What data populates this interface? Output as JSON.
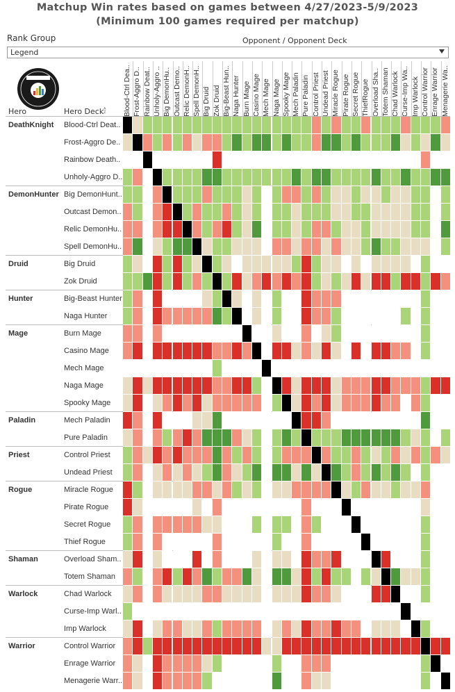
{
  "title_line1": "Matchup Win rates based on games between 4/27/2023-5/9/2023",
  "title_line2": "(Minimum 100 games required per matchup)",
  "rank_group_label": "Rank Group",
  "rank_group_value": "Legend",
  "opponent_header": "Opponent / Opponent Deck",
  "hero_header": "Hero",
  "deck_header": "Hero Deck",
  "colors": {
    "G": "#4f9a3d",
    "g": "#a9d477",
    "B": "#e8dcc2",
    "r": "#f4917e",
    "R": "#d9302a",
    "X": "#000000",
    "W": "#ffffff"
  },
  "chart_data": {
    "type": "heatmap",
    "columns": [
      "Blood-Ctrl Dea..",
      "Frost-Aggro D..",
      "Rainbow Deat..",
      "Unholy-Aggro ..",
      "Big DemonHu..",
      "Outcast Demo..",
      "Relic DemonH..",
      "Spell DemonH..",
      "Big Druid",
      "Zok Druid",
      "Big-Beast Hun..",
      "Naga Hunter",
      "Burn Mage",
      "Casino Mage",
      "Mech Mage",
      "Naga Mage",
      "Spooky Mage",
      "Mech Paladin",
      "Pure Paladin",
      "Control Priest",
      "Undead Priest",
      "Miracle Rogue",
      "Pirate Rogue",
      "Secret Rogue",
      "ThiefRogue",
      "Overload Sha..",
      "Totem Shaman",
      "Chad Warlock",
      "Curse-Imp Wa..",
      "Imp Warlock",
      "Control Warrior",
      "Enrage Warrior",
      "Menagerie Wa.."
    ],
    "heroes": [
      {
        "hero": "DeathKnight",
        "decks": [
          "Blood-Ctrl Deat..",
          "Frost-Aggro De..",
          "Rainbow Death..",
          "Unholy-Aggro D.."
        ]
      },
      {
        "hero": "DemonHunter",
        "decks": [
          "Big DemonHunt..",
          "Outcast Demon..",
          "Relic DemonHu..",
          "Spell DemonHu.."
        ]
      },
      {
        "hero": "Druid",
        "decks": [
          "Big Druid",
          "Zok Druid"
        ]
      },
      {
        "hero": "Hunter",
        "decks": [
          "Big-Beast Hunter",
          "Naga Hunter"
        ]
      },
      {
        "hero": "Mage",
        "decks": [
          "Burn Mage",
          "Casino Mage",
          "Mech Mage",
          "Naga Mage",
          "Spooky Mage"
        ]
      },
      {
        "hero": "Paladin",
        "decks": [
          "Mech Paladin",
          "Pure Paladin"
        ]
      },
      {
        "hero": "Priest",
        "decks": [
          "Control Priest",
          "Undead Priest"
        ]
      },
      {
        "hero": "Rogue",
        "decks": [
          "Miracle Rogue",
          "Pirate Rogue",
          "Secret Rogue",
          "Thief Rogue"
        ]
      },
      {
        "hero": "Shaman",
        "decks": [
          "Overload Sham..",
          "Totem Shaman"
        ]
      },
      {
        "hero": "Warlock",
        "decks": [
          "Chad Warlock",
          "Curse-Imp Warl..",
          "Imp Warlock"
        ]
      },
      {
        "hero": "Warrior",
        "decks": [
          "Control Warrior",
          "Enrage Warrior",
          "Menagerie Warr.."
        ]
      }
    ],
    "cells": [
      "XBgggggggggggggggggrgrggrgggrgggr",
      "BXrgrgrBrrgGgGGgGggrGGgGgggGBgBGB",
      "WWXWWWWWWRWWWWWWWWWWWWWWWWWWWWrWW",
      "grWXggggGGgggggggGgGGggggGggGggGG",
      "ggWrXgggrgggBgWgrrgrgBBgBBgBBggWg",
      "rgWrRXgrggrgBgWggBgggBBggBBBBggWg",
      "rrWrRRXrgrRgBGWggBgrrgBBgBBBBggWG",
      "rGWBgGGXBggBBBWrrBrrBrBBgGggBBBWg",
      "gBWRgRgBXgBWBBBBBgRgBBWBWBBBBWgWW",
      "ggGRgRgrgXgRBrRrRrRgBgBRBRRgRRgRr",
      "grWRWWWWBgXBWBWgWWRrrrWWWWWWWWgWW",
      "grWRrrrrrGgXWBWgWWRrrgWWWWWWgWgWW",
      "rrWrWWWWWWWWXWWBWWrWBgWWWWWWWWgWW",
      "rRWRRRRRRrrRrXWRRBrBRBWRWRRrrWgWW",
      "WWWWWWWWWgWWWWXWWWWWWWWWWWWWWWWWW",
      "BRBRRRRRRrrRRgWXRBRRRBrrrRRrrrgRR",
      "BRWBrRrRBrrrrrWgXBRrRBrrrRrrWrgWW",
      "RrWRWWWBBGWWWWWWWXRRrWWWWWWWWWGWW",
      "BrWrgrRrGGGrBgWgGgXgggGGGGGGgBgWg",
      "grBRrRrrrGrgrgWgrrrXrggrgBgrBrgrB",
      "grWBrBrBgGrBgGWGGBGBXGgrgGgGgWgWW",
      "RgWBBBBrrBrgBgWBBrrrrXBgrBBgBBrWW",
      "RBWWWWWBWrWWWWWWWWrWWWXWWWWWWWBWW",
      "grWrrrrrBBWWWgWggWrgWWWXWWWWWWgWW",
      "grWrWWWWWrWWWWWgWWrWWWWWXWWWWWgWW",
      "BRWBWWWRWrWWWBWBBWRrrRWWWXRWWWgWW",
      "rgWrRgRrGgrrGBWGGBRgRggWgBXGBBgWW",
      "BrWrBBBBrrBBBBWBBBRrrBWWWRRXWWgWW",
      "gWWWWWWWWWWWWWWWWWWWWWWWWWWWXWWWW",
      "BRWBrrBBrgrrrrWBrBRrrRrrWBBBWXgWW",
      "rRgRRRRRRRRRRRBBRRRRRRRRRRRRRRXRR",
      "rBWRrrrrBgWWWWWgWWrrrWWWWWWWWWgXW",
      "rBWRrrrrgWWWWWWGWWrBBWWWWWWWWWgWX"
    ]
  }
}
